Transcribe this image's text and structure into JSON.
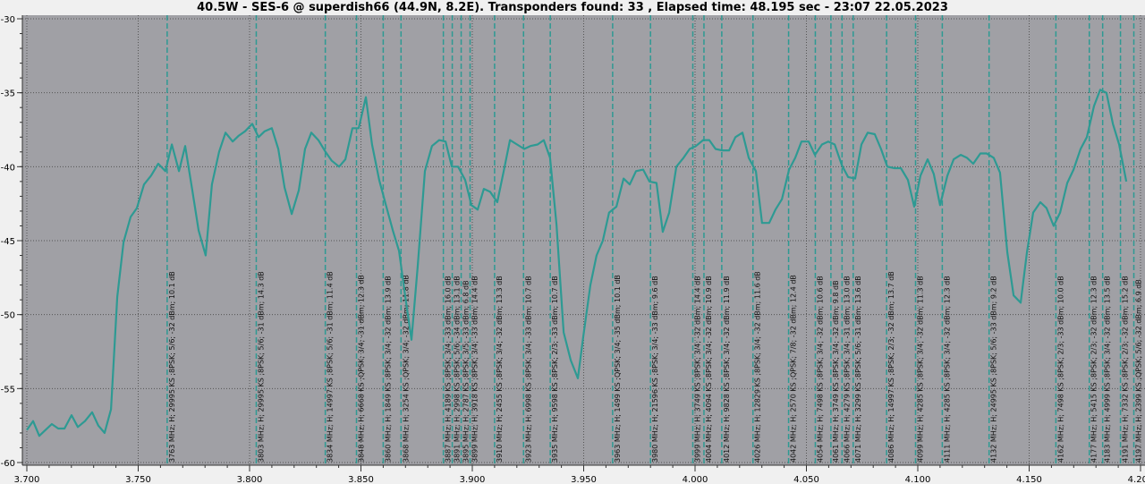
{
  "chart_data": {
    "type": "line",
    "title": "40.5W - SES-6 @ superdish66 (44.9N, 8.2E). Transponders found: 33 , Elapsed time: 48.195 sec - 23:07 22.05.2023",
    "xlabel": "",
    "ylabel": "",
    "xlim": [
      3.7,
      4.2
    ],
    "ylim": [
      -60,
      -30
    ],
    "x_ticks": [
      "3.700",
      "3.750",
      "3.800",
      "3.850",
      "3.900",
      "3.950",
      "4.000",
      "4.050",
      "4.100",
      "4.150",
      "4.200"
    ],
    "y_ticks": [
      "-30",
      "-35",
      "-40",
      "-45",
      "-50",
      "-55",
      "-60"
    ],
    "grid": true,
    "colors": {
      "background": "#f0f0f0",
      "plot_area": "#a0a0a5",
      "line": "#2e9a93",
      "marker": "#2e9a93",
      "grid": "#555555"
    },
    "series": [
      {
        "points": [
          [
            3.7,
            -57.8
          ],
          [
            3.7028,
            -57.2
          ],
          [
            3.7056,
            -58.2
          ],
          [
            3.7084,
            -57.8
          ],
          [
            3.7112,
            -57.4
          ],
          [
            3.7141,
            -57.7
          ],
          [
            3.7169,
            -57.7
          ],
          [
            3.7201,
            -56.8
          ],
          [
            3.7229,
            -57.6
          ],
          [
            3.7261,
            -57.2
          ],
          [
            3.7293,
            -56.6
          ],
          [
            3.7321,
            -57.5
          ],
          [
            3.7349,
            -58.0
          ],
          [
            3.7378,
            -56.4
          ],
          [
            3.7406,
            -48.8
          ],
          [
            3.7434,
            -45.1
          ],
          [
            3.7466,
            -43.4
          ],
          [
            3.7494,
            -42.8
          ],
          [
            3.7526,
            -41.2
          ],
          [
            3.7558,
            -40.6
          ],
          [
            3.759,
            -39.8
          ],
          [
            3.7622,
            -40.3
          ],
          [
            3.7651,
            -38.5
          ],
          [
            3.7683,
            -40.3
          ],
          [
            3.7711,
            -38.6
          ],
          [
            3.7743,
            -41.6
          ],
          [
            3.7771,
            -44.3
          ],
          [
            3.7803,
            -46.0
          ],
          [
            3.7831,
            -41.2
          ],
          [
            3.7863,
            -39.0
          ],
          [
            3.7892,
            -37.7
          ],
          [
            3.7924,
            -38.3
          ],
          [
            3.7952,
            -37.9
          ],
          [
            3.798,
            -37.6
          ],
          [
            3.8012,
            -37.1
          ],
          [
            3.804,
            -38.0
          ],
          [
            3.8068,
            -37.6
          ],
          [
            3.81,
            -37.4
          ],
          [
            3.8129,
            -38.8
          ],
          [
            3.8157,
            -41.4
          ],
          [
            3.8189,
            -43.2
          ],
          [
            3.8221,
            -41.6
          ],
          [
            3.8249,
            -38.8
          ],
          [
            3.8277,
            -37.7
          ],
          [
            3.8309,
            -38.2
          ],
          [
            3.8341,
            -39.0
          ],
          [
            3.8369,
            -39.6
          ],
          [
            3.8402,
            -40.0
          ],
          [
            3.843,
            -39.5
          ],
          [
            3.8462,
            -37.4
          ],
          [
            3.849,
            -37.4
          ],
          [
            3.8522,
            -35.3
          ],
          [
            3.855,
            -38.5
          ],
          [
            3.8582,
            -40.9
          ],
          [
            3.8614,
            -42.7
          ],
          [
            3.8643,
            -44.3
          ],
          [
            3.8671,
            -45.7
          ],
          [
            3.8699,
            -48.8
          ],
          [
            3.8727,
            -51.7
          ],
          [
            3.8755,
            -46.7
          ],
          [
            3.8787,
            -40.3
          ],
          [
            3.8819,
            -38.6
          ],
          [
            3.8851,
            -38.2
          ],
          [
            3.888,
            -38.3
          ],
          [
            3.8908,
            -40.0
          ],
          [
            3.8936,
            -40.0
          ],
          [
            3.8968,
            -40.9
          ],
          [
            3.8996,
            -42.6
          ],
          [
            3.9024,
            -42.9
          ],
          [
            3.9052,
            -41.5
          ],
          [
            3.908,
            -41.7
          ],
          [
            3.9112,
            -42.4
          ],
          [
            3.9141,
            -40.3
          ],
          [
            3.9169,
            -38.2
          ],
          [
            3.9201,
            -38.5
          ],
          [
            3.9233,
            -38.8
          ],
          [
            3.9261,
            -38.6
          ],
          [
            3.9293,
            -38.5
          ],
          [
            3.9321,
            -38.2
          ],
          [
            3.9349,
            -39.4
          ],
          [
            3.9378,
            -43.9
          ],
          [
            3.941,
            -51.2
          ],
          [
            3.9442,
            -53.1
          ],
          [
            3.9474,
            -54.3
          ],
          [
            3.9498,
            -51.5
          ],
          [
            3.953,
            -48.0
          ],
          [
            3.9558,
            -46.0
          ],
          [
            3.9586,
            -45.0
          ],
          [
            3.9614,
            -43.1
          ],
          [
            3.9647,
            -42.7
          ],
          [
            3.9679,
            -40.8
          ],
          [
            3.9707,
            -41.2
          ],
          [
            3.9735,
            -40.3
          ],
          [
            3.9767,
            -40.2
          ],
          [
            3.9795,
            -41.0
          ],
          [
            3.9827,
            -41.1
          ],
          [
            3.9855,
            -44.4
          ],
          [
            3.9884,
            -43.1
          ],
          [
            3.9916,
            -40.0
          ],
          [
            3.9948,
            -39.4
          ],
          [
            3.9976,
            -38.8
          ],
          [
            4.0004,
            -38.6
          ],
          [
            4.0036,
            -38.2
          ],
          [
            4.0064,
            -38.2
          ],
          [
            4.0092,
            -38.8
          ],
          [
            4.012,
            -38.9
          ],
          [
            4.0153,
            -38.9
          ],
          [
            4.0181,
            -38.0
          ],
          [
            4.0213,
            -37.7
          ],
          [
            4.0241,
            -39.4
          ],
          [
            4.0273,
            -40.3
          ],
          [
            4.0301,
            -43.8
          ],
          [
            4.0333,
            -43.8
          ],
          [
            4.0361,
            -42.9
          ],
          [
            4.039,
            -42.2
          ],
          [
            4.0422,
            -40.2
          ],
          [
            4.045,
            -39.4
          ],
          [
            4.0478,
            -38.3
          ],
          [
            4.051,
            -38.3
          ],
          [
            4.0538,
            -39.2
          ],
          [
            4.057,
            -38.5
          ],
          [
            4.0598,
            -38.3
          ],
          [
            4.0627,
            -38.5
          ],
          [
            4.0659,
            -39.9
          ],
          [
            4.0687,
            -40.7
          ],
          [
            4.0719,
            -40.8
          ],
          [
            4.0747,
            -38.5
          ],
          [
            4.0775,
            -37.7
          ],
          [
            4.0807,
            -37.8
          ],
          [
            4.0835,
            -38.8
          ],
          [
            4.0863,
            -40.0
          ],
          [
            4.0896,
            -40.1
          ],
          [
            4.0924,
            -40.1
          ],
          [
            4.0956,
            -40.9
          ],
          [
            4.0984,
            -42.7
          ],
          [
            4.1012,
            -40.6
          ],
          [
            4.1044,
            -39.5
          ],
          [
            4.1072,
            -40.5
          ],
          [
            4.11,
            -42.6
          ],
          [
            4.1133,
            -40.6
          ],
          [
            4.1161,
            -39.5
          ],
          [
            4.1193,
            -39.2
          ],
          [
            4.1221,
            -39.4
          ],
          [
            4.1249,
            -39.8
          ],
          [
            4.1281,
            -39.1
          ],
          [
            4.1309,
            -39.1
          ],
          [
            4.1341,
            -39.4
          ],
          [
            4.1369,
            -40.4
          ],
          [
            4.1402,
            -45.8
          ],
          [
            4.143,
            -48.7
          ],
          [
            4.1462,
            -49.2
          ],
          [
            4.149,
            -45.8
          ],
          [
            4.1518,
            -43.1
          ],
          [
            4.155,
            -42.4
          ],
          [
            4.1578,
            -42.8
          ],
          [
            4.161,
            -44.0
          ],
          [
            4.1639,
            -43.1
          ],
          [
            4.1671,
            -41.1
          ],
          [
            4.1699,
            -40.2
          ],
          [
            4.1731,
            -38.8
          ],
          [
            4.1759,
            -38.0
          ],
          [
            4.1791,
            -35.9
          ],
          [
            4.1819,
            -34.8
          ],
          [
            4.1847,
            -35.0
          ],
          [
            4.1876,
            -37.1
          ],
          [
            4.1904,
            -38.5
          ],
          [
            4.1936,
            -41.0
          ]
        ]
      }
    ],
    "transponders": [
      {
        "freq": 3763,
        "label": "3763 MHz; H; 29995 KS ;8PSK; 5/6; -32 dBm; 10.1 dB"
      },
      {
        "freq": 3803,
        "label": "3803 MHz; H; 29995 KS ;8PSK; 5/6; -31 dBm; 14.3 dB"
      },
      {
        "freq": 3834,
        "label": "3834 MHz; H; 14997 KS ;8PSK; 5/6; -31 dBm; 11.4 dB"
      },
      {
        "freq": 3848,
        "label": "3848 MHz; H; 6668 KS ;QPSK; 3/4; -31 dBm; 12.3 dB"
      },
      {
        "freq": 3860,
        "label": "3860 MHz; H; 1849 KS ;8PSK; 3/4; -32 dBm; 13.9 dB"
      },
      {
        "freq": 3868,
        "label": "3868 MHz; H; 3254 KS ;QPSK; 3/4; -32 dBm; 11.8 dB"
      },
      {
        "freq": 3887,
        "label": "3887 MHz; H; 4189 KS ;8PSK; 3/4; -33 dBm; 16.0 dB"
      },
      {
        "freq": 3891,
        "label": "3891 MHz; H; 2998 KS ;8PSK; 5/6; -34 dBm; 13.1 dB"
      },
      {
        "freq": 3895,
        "label": "3895 MHz; H; 2787 KS ;8PSK; 3/5; -33 dBm; 6.8 dB"
      },
      {
        "freq": 3899,
        "label": "3899 MHz; H; 3918 KS ;8PSK; 3/4; -33 dBm; 14.4 dB"
      },
      {
        "freq": 3910,
        "label": "3910 MHz; H; 2455 KS ;8PSK; 3/4; -32 dBm; 13.3 dB"
      },
      {
        "freq": 3923,
        "label": "3923 MHz; H; 6998 KS ;8PSK; 3/4; -33 dBm; 10.7 dB"
      },
      {
        "freq": 3935,
        "label": "3935 MHz; H; 9598 KS ;8PSK; 2/3; -33 dBm; 10.7 dB"
      },
      {
        "freq": 3963,
        "label": "3963 MHz; H; 1499 KS ;QPSK; 3/4; -35 dBm; 10.1 dB"
      },
      {
        "freq": 3980,
        "label": "3980 MHz; H; 21596 KS ;8PSK; 3/4; -33 dBm; 9.6 dB"
      },
      {
        "freq": 3999,
        "label": "3999 MHz; H; 3749 KS ;8PSK; 3/4; -32 dBm; 14.4 dB"
      },
      {
        "freq": 4004,
        "label": "4004 MHz; H; 4094 KS ;8PSK; 3/4; -32 dBm; 10.9 dB"
      },
      {
        "freq": 4012,
        "label": "4012 MHz; H; 9828 KS ;8PSK; 3/4; -32 dBm; 11.9 dB"
      },
      {
        "freq": 4026,
        "label": "4026 MHz; H; 12829 KS ;8PSK; 3/4; -32 dBm; 11.6 dB"
      },
      {
        "freq": 4042,
        "label": "4042 MHz; H; 2570 KS ;QPSK; 7/8; -32 dBm; 12.4 dB"
      },
      {
        "freq": 4054,
        "label": "4054 MHz; H; 7498 KS ;8PSK; 3/4; -32 dBm; 10.6 dB"
      },
      {
        "freq": 4061,
        "label": "4061 MHz; H; 3749 KS ;8PSK; 3/4; -32 dBm; 9.8 dB"
      },
      {
        "freq": 4066,
        "label": "4066 MHz; H; 4279 KS ;8PSK; 3/4; -31 dBm; 13.0 dB"
      },
      {
        "freq": 4071,
        "label": "4071 MHz; H; 3299 KS ;8PSK; 5/6; -31 dBm; 13.6 dB"
      },
      {
        "freq": 4086,
        "label": "4086 MHz; H; 14997 KS ;8PSK; 2/3; -32 dBm; 13.7 dB"
      },
      {
        "freq": 4099,
        "label": "4099 MHz; H; 4285 KS ;8PSK; 3/4; -32 dBm; 11.3 dB"
      },
      {
        "freq": 4111,
        "label": "4111 MHz; H; 4285 KS ;8PSK; 3/4; -32 dBm; 12.3 dB"
      },
      {
        "freq": 4132,
        "label": "4132 MHz; H; 24995 KS ;8PSK; 5/6; -33 dBm; 9.2 dB"
      },
      {
        "freq": 4162,
        "label": "4162 MHz; H; 7498 KS ;8PSK; 2/3; -33 dBm; 10.0 dB"
      },
      {
        "freq": 4177,
        "label": "4177 MHz; H; 5415 KS ;8PSK; 2/3; -32 dBm; 12.3 dB"
      },
      {
        "freq": 4183,
        "label": "4183 MHz; H; 4999 KS ;8PSK; 3/4; -32 dBm; 13.5 dB"
      },
      {
        "freq": 4191,
        "label": "4191 MHz; H; 7332 KS ;8PSK; 2/3; -32 dBm; 15.2 dB"
      },
      {
        "freq": 4197,
        "label": "4197 MHz; H; 2399 KS ;QPSK; 5/6; -32 dBm; 6.9 dB"
      }
    ]
  }
}
